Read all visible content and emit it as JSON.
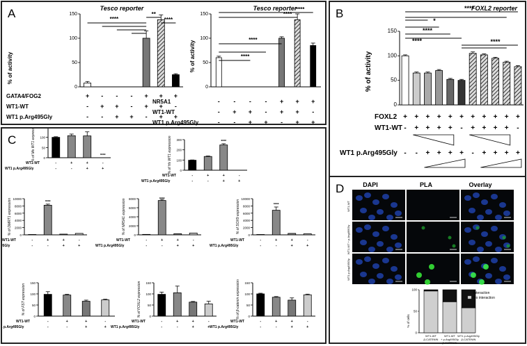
{
  "panels": {
    "A": {
      "letter": "A",
      "left": {
        "title": "Tesco reporter",
        "ylabel": "% of activity",
        "yticks": [
          "0",
          "50",
          "100",
          "150"
        ],
        "rows": [
          {
            "label": "GATA4/FOG2",
            "signs": [
              "+",
              "-",
              "-",
              "-",
              "+",
              "+",
              "+"
            ]
          },
          {
            "label": "WT1-WT",
            "signs": [
              "-",
              "+",
              "+",
              "-",
              "+",
              "+",
              "-"
            ]
          },
          {
            "label": "WT1 p.Arg495Gly",
            "signs": [
              "-",
              "-",
              "+",
              "+",
              "-",
              "+",
              "+"
            ]
          }
        ],
        "sig": [
          "****",
          "**",
          "****"
        ]
      },
      "right": {
        "title": "Tesco reporter",
        "ylabel": "% of activity",
        "yticks": [
          "0",
          "50",
          "100",
          "150"
        ],
        "rows": [
          {
            "label": "NR5A1",
            "signs": [
              "-",
              "-",
              "-",
              "-",
              "+",
              "+",
              "+"
            ]
          },
          {
            "label": "WT1-WT",
            "signs": [
              "-",
              "+",
              "+",
              "-",
              "+",
              "+",
              "-"
            ]
          },
          {
            "label": "WT1 p.Arg495Gly",
            "signs": [
              "-",
              "-",
              "+",
              "+",
              "-",
              "+",
              "+"
            ]
          }
        ],
        "sig": [
          "****",
          "****",
          "****",
          "****"
        ]
      }
    },
    "B": {
      "letter": "B",
      "title": "FOXL2 reporter",
      "ylabel": "% of activity",
      "yticks": [
        "0",
        "50",
        "100",
        "150"
      ],
      "rows": [
        {
          "label": "FOXL2",
          "signs": [
            "+",
            "+",
            "+",
            "+",
            "+",
            "+",
            "+",
            "+",
            "+",
            "+",
            "+"
          ]
        },
        {
          "label": "WT1-WT",
          "signs": [
            "-",
            "+",
            "+",
            "+",
            "+",
            "-",
            "+",
            "+",
            "+",
            "+",
            "-"
          ]
        },
        {
          "label": "WT1 p.Arg495Gly",
          "signs": [
            "-",
            "-",
            "+",
            "+",
            "+",
            "+",
            "-",
            "+",
            "+",
            "+",
            "+"
          ]
        }
      ],
      "sig": [
        "****",
        "****",
        "*",
        "****",
        "****",
        "****"
      ]
    },
    "C": {
      "letter": "C",
      "row_labels": {
        "wt": "WT1-WT",
        "mut": "WT1 p.Arg495Gly"
      },
      "sig": "****"
    },
    "D": {
      "letter": "D",
      "cols": [
        "DAPI",
        "PLA",
        "Overlay"
      ],
      "rows": [
        "WT1-WT",
        "WT1-WT + p.Arg495Gly",
        "WT1 p.Arg495Gly"
      ],
      "legend": [
        "Interaction",
        "No interaction"
      ],
      "ylabel": "% of cells",
      "yticks": [
        "0",
        "50",
        "100"
      ],
      "xlabels": [
        [
          "WT1-WT",
          "β-CATENIN"
        ],
        [
          "WT1-WT",
          "+ p.Arg495Gly",
          "β-CATENIN"
        ],
        [
          "WT1 p.Arg495Gly",
          "β-CATENIN"
        ]
      ]
    }
  },
  "chart_data": [
    {
      "type": "bar",
      "title": "Tesco reporter",
      "ylabel": "% of activity",
      "ylim": [
        0,
        150
      ],
      "values": [
        8,
        0,
        0,
        0,
        100,
        138,
        25
      ],
      "errors": [
        3,
        0,
        0,
        0,
        15,
        10,
        2
      ],
      "colors": [
        "#ffffff",
        "#ffffff",
        "#ffffff",
        "#ffffff",
        "#777777",
        "hatch",
        "#000000"
      ]
    },
    {
      "type": "bar",
      "title": "Tesco reporter",
      "ylabel": "% of activity",
      "ylim": [
        0,
        150
      ],
      "values": [
        60,
        0,
        0,
        0,
        100,
        138,
        85
      ],
      "errors": [
        3,
        0,
        0,
        0,
        3,
        12,
        5
      ],
      "colors": [
        "#ffffff",
        "#ffffff",
        "#ffffff",
        "#ffffff",
        "#777777",
        "hatch",
        "#000000"
      ]
    },
    {
      "type": "bar",
      "title": "FOXL2 reporter",
      "ylabel": "% of activity",
      "ylim": [
        0,
        150
      ],
      "values": [
        100,
        65,
        65,
        70,
        52,
        50,
        105,
        102,
        95,
        87,
        78
      ],
      "errors": [
        2,
        2,
        2,
        2,
        2,
        2,
        3,
        2,
        2,
        2,
        2
      ],
      "colors": [
        "#ffffff",
        "#cccccc",
        "#aaaaaa",
        "#999999",
        "#666666",
        "#333333",
        "hatch",
        "hatch",
        "hatch",
        "hatch",
        "hatch"
      ]
    },
    {
      "type": "bar",
      "ylabel": "% of Ms WT1 expression",
      "ylim": [
        0,
        150
      ],
      "yticks": [
        "0",
        "50",
        "100",
        "150"
      ],
      "values": [
        100,
        108,
        107,
        0
      ],
      "errors": [
        3,
        8,
        20,
        0
      ],
      "colors": [
        "#000000",
        "#888888",
        "#888888",
        "#cccccc"
      ]
    },
    {
      "type": "bar",
      "ylabel": "% of Hs WT1 expression",
      "ylim": [
        0,
        300
      ],
      "yticks": [
        "0",
        "100",
        "200",
        "300"
      ],
      "values": [
        98,
        135,
        248,
        0
      ],
      "errors": [
        3,
        5,
        12,
        0
      ],
      "colors": [
        "#000000",
        "#888888",
        "#888888",
        "#cccccc"
      ]
    },
    {
      "type": "bar",
      "ylabel": "% of DMRT1 expression",
      "ylim": [
        0,
        10000
      ],
      "yticks": [
        "0",
        "2000",
        "4000",
        "6000",
        "8000",
        "10000"
      ],
      "values": [
        100,
        8200,
        200,
        400
      ],
      "errors": [
        0,
        300,
        0,
        0
      ],
      "colors": [
        "#000000",
        "#888888",
        "#888888",
        "#cccccc"
      ]
    },
    {
      "type": "bar",
      "ylabel": "% of NR5A1 expression",
      "ylim": [
        0,
        8000
      ],
      "yticks": [
        "0",
        "2000",
        "4000",
        "6000",
        "8000"
      ],
      "values": [
        100,
        7600,
        250,
        400
      ],
      "errors": [
        0,
        250,
        0,
        0
      ],
      "colors": [
        "#000000",
        "#888888",
        "#888888",
        "#cccccc"
      ]
    },
    {
      "type": "bar",
      "ylabel": "% of SOX9 expression",
      "ylim": [
        0,
        10000
      ],
      "yticks": [
        "0",
        "2000",
        "4000",
        "6000",
        "8000",
        "10000"
      ],
      "values": [
        100,
        6800,
        400,
        300
      ],
      "errors": [
        0,
        900,
        0,
        0
      ],
      "colors": [
        "#000000",
        "#888888",
        "#888888",
        "#cccccc"
      ]
    },
    {
      "type": "bar",
      "ylabel": "% of FST expression",
      "ylim": [
        0,
        150
      ],
      "yticks": [
        "0",
        "50",
        "100",
        "150"
      ],
      "values": [
        98,
        95,
        67,
        73
      ],
      "errors": [
        12,
        3,
        5,
        3
      ],
      "colors": [
        "#000000",
        "#888888",
        "#777777",
        "#cccccc"
      ]
    },
    {
      "type": "bar",
      "ylabel": "% of FOXL2 expression",
      "ylim": [
        0,
        150
      ],
      "yticks": [
        "0",
        "50",
        "100",
        "150"
      ],
      "values": [
        98,
        105,
        63,
        55
      ],
      "errors": [
        10,
        30,
        3,
        12
      ],
      "colors": [
        "#000000",
        "#888888",
        "#777777",
        "#cccccc"
      ]
    },
    {
      "type": "bar",
      "ylabel": "% of β-catenin expression",
      "ylim": [
        0,
        150
      ],
      "yticks": [
        "0",
        "50",
        "100",
        "150"
      ],
      "values": [
        100,
        85,
        72,
        96
      ],
      "errors": [
        3,
        3,
        10,
        3
      ],
      "colors": [
        "#000000",
        "#888888",
        "#777777",
        "#cccccc"
      ]
    },
    {
      "type": "bar",
      "ylabel": "% of cells",
      "ylim": [
        0,
        100
      ],
      "interaction": [
        3,
        28,
        42
      ],
      "no_interaction": [
        97,
        72,
        58
      ]
    }
  ]
}
